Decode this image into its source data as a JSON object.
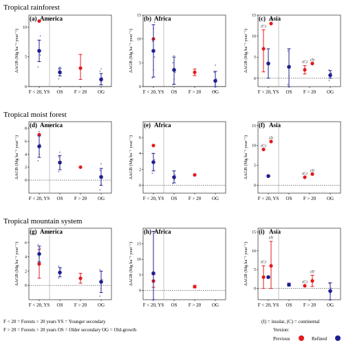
{
  "sections": [
    {
      "title": "Tropical rainforest"
    },
    {
      "title": "Tropical moist forest"
    },
    {
      "title": "Tropical mountain system"
    }
  ],
  "ylabel": "ΔAGB (Mg  ha⁻¹ year⁻¹)",
  "categories": [
    "F < 20, YS",
    "OS",
    "F > 20",
    "OG"
  ],
  "footer": {
    "line1": "F < 20 = Forests < 20 years   YS = Younger secondary",
    "line2": "F > 20 = Forests > 20 years   OS = Older secondary      OG = Old-growth",
    "insular_note": "(I) = insular, (C) = continental",
    "legend_title": "Version:",
    "legend_previous": "Previous",
    "legend_refined": "Refined"
  },
  "colors": {
    "previous": "#e31a1c",
    "refined": "#1f1f8f"
  },
  "chart_data": [
    {
      "panel": "(a)",
      "region": "America",
      "type": "scatter",
      "ylim": [
        0,
        12
      ],
      "yticks": [
        0,
        5,
        10
      ],
      "previous": [
        {
          "x": "F < 20, YS",
          "y": 11
        },
        {
          "x": "F > 20",
          "y": 3.1,
          "low": 1.2,
          "high": 5.4
        }
      ],
      "refined": [
        {
          "x": "F < 20, YS",
          "y": 6.0,
          "low": 4.2,
          "high": 7.8,
          "pts": [
            3.3,
            4.2,
            5.3,
            6.2,
            7.8,
            8.5
          ]
        },
        {
          "x": "OS",
          "y": 2.4,
          "low": 1.8,
          "high": 3.1,
          "pts": [
            1.3,
            1.8,
            2.2,
            2.9,
            3.3
          ]
        },
        {
          "x": "OG",
          "y": 1.2,
          "low": 0.3,
          "high": 2.2,
          "pts": [
            0.3,
            0.7,
            1.5,
            2.6,
            3.0
          ]
        }
      ]
    },
    {
      "panel": "(b)",
      "region": "Africa",
      "type": "scatter",
      "ylim": [
        0,
        15
      ],
      "yticks": [
        0,
        5,
        10,
        15
      ],
      "previous": [
        {
          "x": "F < 20, YS",
          "y": 10
        },
        {
          "x": "F > 20",
          "y": 3.0,
          "low": 2.3,
          "high": 3.7
        }
      ],
      "refined": [
        {
          "x": "F < 20, YS",
          "y": 7.5,
          "low": 2.0,
          "high": 13.0,
          "pts": [
            1.8,
            3.5,
            6.2,
            9.5,
            12.2,
            13.5
          ]
        },
        {
          "x": "OS",
          "y": 3.5,
          "low": 0.5,
          "high": 6.2,
          "pts": [
            0.4,
            1.5,
            3.0,
            5.0,
            6.5
          ]
        },
        {
          "x": "OG",
          "y": 1.2,
          "low": 0.0,
          "high": 3.2,
          "pts": [
            -1.0,
            0.4,
            1.6,
            3.0,
            4.5
          ]
        }
      ]
    },
    {
      "panel": "(c)",
      "region": "Asia",
      "type": "scatter",
      "ylim": [
        -2,
        15
      ],
      "yticks": [
        0,
        5,
        10,
        15
      ],
      "previous": [
        {
          "x": "F < 20, YS",
          "label": "(C)",
          "y": 7.0,
          "low": 1.5,
          "high": 11.5
        },
        {
          "x": "F < 20, YS",
          "label": "(I)",
          "y": 13
        },
        {
          "x": "F > 20",
          "label": "(C)",
          "y": 2.0,
          "low": 1.0,
          "high": 3.0
        },
        {
          "x": "F > 20",
          "label": "(I)",
          "y": 3.5
        }
      ],
      "refined": [
        {
          "x": "F < 20, YS",
          "y": 3.5,
          "low": 0.0,
          "high": 7.0,
          "pts": []
        },
        {
          "x": "OS",
          "y": 2.7,
          "low": -2.0,
          "high": 7.0,
          "pts": [
            -1.5,
            0.5,
            3.0,
            6.5
          ]
        },
        {
          "x": "OG",
          "y": 0.7,
          "low": 0.0,
          "high": 1.8,
          "pts": [
            -0.5,
            0.4,
            1.2,
            2.0
          ]
        }
      ]
    },
    {
      "panel": "(d)",
      "region": "America",
      "type": "scatter",
      "ylim": [
        -2,
        9
      ],
      "yticks": [
        0,
        2,
        4,
        6,
        8
      ],
      "previous": [
        {
          "x": "F < 20, YS",
          "y": 7.0
        },
        {
          "x": "F > 20",
          "y": 2.0
        }
      ],
      "refined": [
        {
          "x": "F < 20, YS",
          "y": 5.2,
          "low": 3.5,
          "high": 6.8,
          "pts": [
            3.0,
            4.0,
            5.5,
            6.8,
            7.5
          ]
        },
        {
          "x": "OS",
          "y": 2.7,
          "low": 1.6,
          "high": 3.8,
          "pts": [
            1.3,
            1.9,
            2.9,
            3.6,
            4.3
          ]
        },
        {
          "x": "OG",
          "y": 0.5,
          "low": -0.8,
          "high": 1.8,
          "pts": [
            -1.5,
            -0.6,
            0.3,
            1.5,
            2.5
          ]
        }
      ]
    },
    {
      "panel": "(e)",
      "region": "Africa",
      "type": "scatter",
      "ylim": [
        -1,
        8
      ],
      "yticks": [
        0,
        2,
        4,
        6
      ],
      "previous": [
        {
          "x": "F < 20, YS",
          "y": 5.0
        },
        {
          "x": "F > 20",
          "y": 1.3
        }
      ],
      "refined": [
        {
          "x": "F < 20, YS",
          "y": 2.9,
          "low": 1.8,
          "high": 4.0,
          "pts": [
            1.5,
            2.0,
            3.2,
            4.0
          ]
        },
        {
          "x": "OS",
          "y": 1.0,
          "low": 0.3,
          "high": 1.8,
          "pts": [
            0.2,
            0.7,
            1.3,
            1.8
          ]
        }
      ]
    },
    {
      "panel": "(f)",
      "region": "Asia",
      "type": "scatter",
      "ylim": [
        -2,
        16
      ],
      "yticks": [
        0,
        5,
        10,
        15
      ],
      "previous": [
        {
          "x": "F < 20, YS",
          "label": "(C)",
          "y": 9.0
        },
        {
          "x": "F < 20, YS",
          "label": "(I)",
          "y": 11.0
        },
        {
          "x": "F > 20",
          "label": "(C)",
          "y": 2.0
        },
        {
          "x": "F > 20",
          "label": "(I)",
          "y": 2.8
        }
      ],
      "refined": [
        {
          "x": "F < 20, YS",
          "y": 2.3
        }
      ]
    },
    {
      "panel": "(g)",
      "region": "America",
      "type": "scatter",
      "ylim": [
        -2,
        8
      ],
      "yticks": [
        0,
        2,
        4,
        6
      ],
      "previous": [
        {
          "x": "F < 20, YS",
          "y": 3.0,
          "low": 1.0,
          "high": 5.0
        },
        {
          "x": "F > 20",
          "y": 1.0,
          "low": 0.3,
          "high": 1.7
        }
      ],
      "refined": [
        {
          "x": "F < 20, YS",
          "y": 4.4,
          "low": 3.3,
          "high": 5.5,
          "pts": [
            3.0,
            4.0,
            5.2,
            5.7
          ]
        },
        {
          "x": "OS",
          "y": 1.8,
          "low": 1.2,
          "high": 2.5,
          "pts": [
            1.0,
            1.6,
            2.3,
            2.7
          ]
        },
        {
          "x": "OG",
          "y": 0.5,
          "low": -1.0,
          "high": 2.0,
          "pts": [
            -1.5,
            -0.4,
            0.8,
            2.2
          ]
        }
      ]
    },
    {
      "panel": "(h)",
      "region": "Africa",
      "type": "scatter",
      "ylim": [
        -3,
        20
      ],
      "yticks": [
        0,
        5,
        10,
        15
      ],
      "previous": [
        {
          "x": "F < 20, YS",
          "y": 3.0,
          "low": 1.0,
          "high": 5.0
        },
        {
          "x": "F > 20",
          "y": 1.2,
          "low": 0.8,
          "high": 1.6
        }
      ],
      "refined": [
        {
          "x": "F < 20, YS",
          "y": 5.5,
          "low": -3.0,
          "high": 19.0,
          "pts": []
        }
      ]
    },
    {
      "panel": "(i)",
      "region": "Asia",
      "type": "scatter",
      "ylim": [
        -3,
        16
      ],
      "yticks": [
        0,
        5,
        10,
        15
      ],
      "previous": [
        {
          "x": "F < 20, YS",
          "label": "(C)",
          "y": 3.0,
          "low": 0.0,
          "high": 6.0
        },
        {
          "x": "F < 20, YS",
          "label": "(I)",
          "y": 6.0,
          "low": 0.0,
          "high": 12.5
        },
        {
          "x": "F > 20",
          "label": "(C)",
          "y": 0.7
        },
        {
          "x": "F > 20",
          "label": "(I)",
          "y": 2.0,
          "low": 0.5,
          "high": 3.5
        }
      ],
      "refined": [
        {
          "x": "F < 20, YS",
          "y": 3.0
        },
        {
          "x": "OS",
          "y": 1.0,
          "low": 0.6,
          "high": 1.4
        },
        {
          "x": "OG",
          "y": -0.7,
          "low": -3.0,
          "high": 1.5,
          "pts": [
            -3.0,
            -1.5,
            0.0,
            1.3
          ]
        }
      ]
    }
  ]
}
